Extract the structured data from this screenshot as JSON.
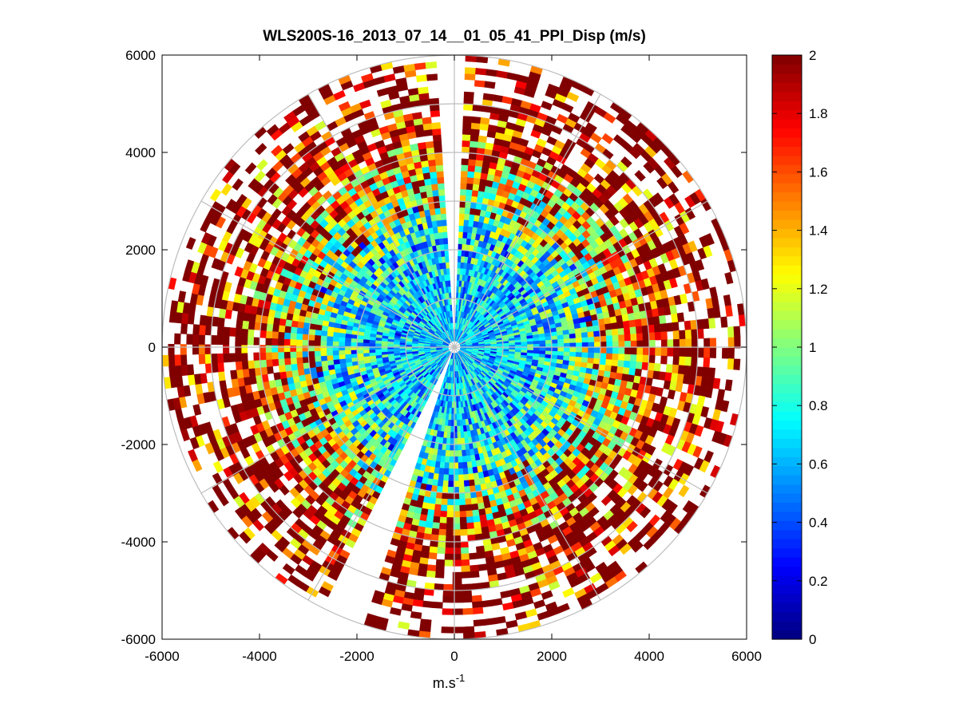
{
  "chart_data": {
    "type": "heatmap",
    "subtype": "polar-ppi",
    "title": "WLS200S-16_2013_07_14__01_05_41_PPI_Disp (m/s)",
    "xlabel": "m.s",
    "xlabel_superscript": "-1",
    "ylabel": "",
    "xlim": [
      -6000,
      6000
    ],
    "ylim": [
      -6000,
      6000
    ],
    "x_ticks": [
      "-6000",
      "-4000",
      "-2000",
      "0",
      "2000",
      "4000",
      "6000"
    ],
    "y_ticks": [
      "6000",
      "4000",
      "2000",
      "0",
      "-2000",
      "-4000",
      "-6000"
    ],
    "x_tick_values": [
      -6000,
      -4000,
      -2000,
      0,
      2000,
      4000,
      6000
    ],
    "y_tick_values": [
      6000,
      4000,
      2000,
      0,
      -2000,
      -4000,
      -6000
    ],
    "range_rings_m": [
      1000,
      2000,
      3000,
      4000,
      5000,
      6000
    ],
    "max_range_m": 6000,
    "radial_spokes_deg": [
      0,
      30,
      60,
      90,
      120,
      150,
      180,
      210,
      240,
      270,
      300,
      330
    ],
    "colormap": "jet",
    "color_limits": [
      0,
      2
    ],
    "colorbar_ticks": [
      "2",
      "1.8",
      "1.6",
      "1.4",
      "1.2",
      "1",
      "0.8",
      "0.6",
      "0.4",
      "0.2",
      "0"
    ],
    "colorbar_tick_values": [
      2,
      1.8,
      1.6,
      1.4,
      1.2,
      1,
      0.8,
      0.6,
      0.4,
      0.2,
      0
    ],
    "gap_sectors_deg": [
      [
        -4,
        2
      ],
      [
        198,
        207
      ]
    ],
    "value_profile": {
      "description": "Dispersion (m/s) by range: low near the lidar, saturating at outer ranges",
      "range_m": [
        0,
        1500,
        2500,
        3500,
        4500,
        6000
      ],
      "typical_value": [
        0.65,
        0.7,
        0.85,
        1.2,
        1.8,
        2.0
      ]
    }
  }
}
